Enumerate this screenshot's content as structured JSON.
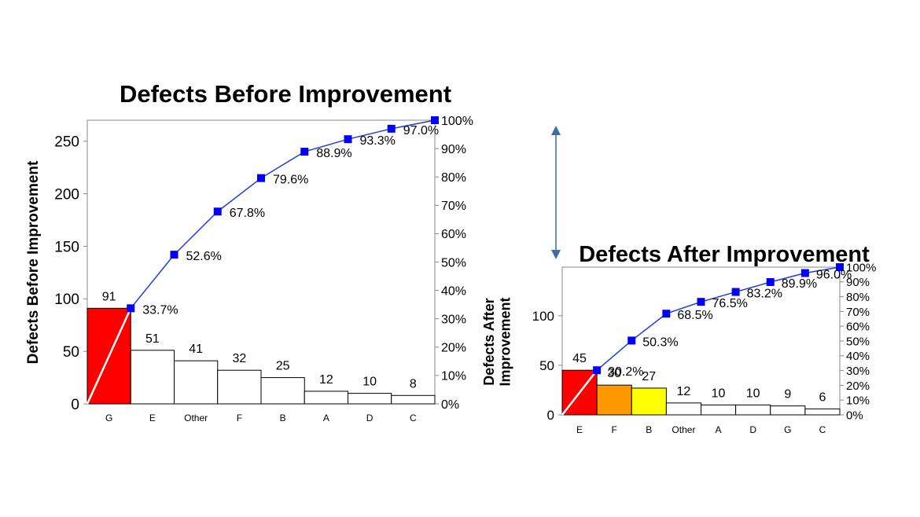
{
  "chart_data": [
    {
      "type": "bar",
      "title": "Defects Before Improvement",
      "ylabel": "Defects Before Improvement",
      "categories": [
        "G",
        "E",
        "Other",
        "F",
        "B",
        "A",
        "D",
        "C"
      ],
      "values": [
        91,
        51,
        41,
        32,
        25,
        12,
        10,
        8
      ],
      "bar_colors": [
        "#ff0000",
        "#ffffff",
        "#ffffff",
        "#ffffff",
        "#ffffff",
        "#ffffff",
        "#ffffff",
        "#ffffff"
      ],
      "cumulative_percent": [
        33.7,
        52.6,
        67.8,
        79.6,
        88.9,
        93.3,
        97.0,
        100.0
      ],
      "cumulative_labels": [
        "33.7%",
        "52.6%",
        "67.8%",
        "79.6%",
        "88.9%",
        "93.3%",
        "97.0%",
        ""
      ],
      "ylim": [
        0,
        270
      ],
      "yticks": [
        0,
        50,
        100,
        150,
        200,
        250
      ],
      "y2ticks": [
        "0%",
        "10%",
        "20%",
        "30%",
        "40%",
        "50%",
        "60%",
        "70%",
        "80%",
        "90%",
        "100%"
      ],
      "line_color": "#1f3fd8",
      "marker_color": "#0000ff"
    },
    {
      "type": "bar",
      "title": "Defects After Improvement",
      "ylabel": "Defects After Improvement",
      "categories": [
        "E",
        "F",
        "B",
        "Other",
        "A",
        "D",
        "G",
        "C"
      ],
      "values": [
        45,
        30,
        27,
        12,
        10,
        10,
        9,
        6
      ],
      "bar_colors": [
        "#ff0000",
        "#ff9900",
        "#ffff00",
        "#ffffff",
        "#ffffff",
        "#ffffff",
        "#ffffff",
        "#ffffff"
      ],
      "cumulative_percent": [
        30.2,
        50.3,
        68.5,
        76.5,
        83.2,
        89.9,
        96.0,
        100.0
      ],
      "cumulative_labels": [
        "30.2%",
        "50.3%",
        "68.5%",
        "76.5%",
        "83.2%",
        "89.9%",
        "96.0%",
        ""
      ],
      "ylim": [
        0,
        149
      ],
      "yticks": [
        0,
        50,
        100
      ],
      "y2ticks": [
        "0%",
        "10%",
        "20%",
        "30%",
        "40%",
        "50%",
        "60%",
        "70%",
        "80%",
        "90%",
        "100%"
      ],
      "line_color": "#1f3fd8",
      "marker_color": "#0000ff"
    }
  ],
  "arrow_color": "#3a6ea8"
}
